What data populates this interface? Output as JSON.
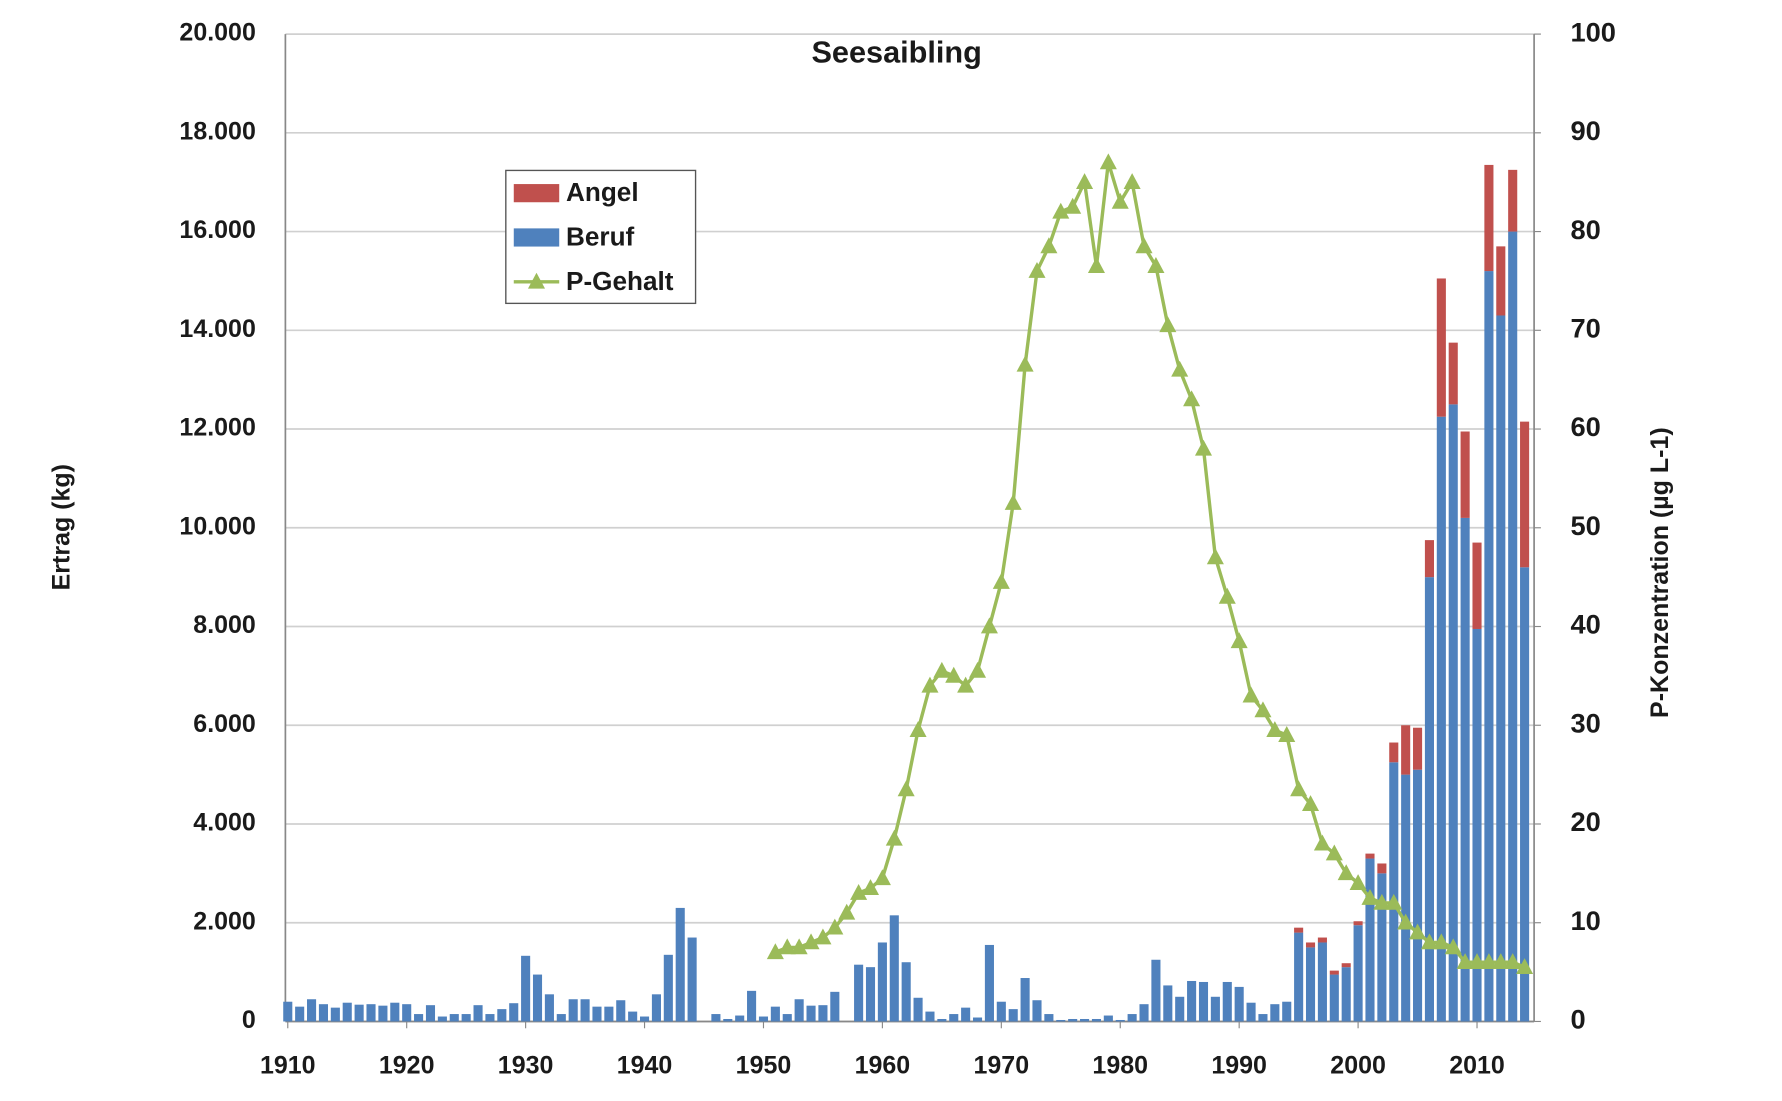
{
  "chart_data": {
    "type": "bar",
    "title": "Seesaibling",
    "stacked": true,
    "y_label": "Ertrag (kg)",
    "y2_label": "P-Konzentration (µg L-1)",
    "grid": true,
    "legend": "upper left",
    "x": [
      1910,
      1911,
      1912,
      1913,
      1914,
      1915,
      1916,
      1917,
      1918,
      1919,
      1920,
      1921,
      1922,
      1923,
      1924,
      1925,
      1926,
      1927,
      1928,
      1929,
      1930,
      1931,
      1932,
      1933,
      1934,
      1935,
      1936,
      1937,
      1938,
      1939,
      1940,
      1941,
      1942,
      1943,
      1944,
      1945,
      1946,
      1947,
      1948,
      1949,
      1950,
      1951,
      1952,
      1953,
      1954,
      1955,
      1956,
      1957,
      1958,
      1959,
      1960,
      1961,
      1962,
      1963,
      1964,
      1965,
      1966,
      1967,
      1968,
      1969,
      1970,
      1971,
      1972,
      1973,
      1974,
      1975,
      1976,
      1977,
      1978,
      1979,
      1980,
      1981,
      1982,
      1983,
      1984,
      1985,
      1986,
      1987,
      1988,
      1989,
      1990,
      1991,
      1992,
      1993,
      1994,
      1995,
      1996,
      1997,
      1998,
      1999,
      2000,
      2001,
      2002,
      2003,
      2004,
      2005,
      2006,
      2007,
      2008,
      2009,
      2010,
      2011,
      2012,
      2013,
      2014
    ],
    "series": [
      {
        "name": "Angel",
        "color": "#c0504d",
        "values": [
          0,
          0,
          0,
          0,
          0,
          0,
          0,
          0,
          0,
          0,
          0,
          0,
          0,
          0,
          0,
          0,
          0,
          0,
          0,
          0,
          0,
          0,
          0,
          0,
          0,
          0,
          0,
          0,
          0,
          0,
          0,
          0,
          0,
          0,
          0,
          0,
          0,
          0,
          0,
          0,
          0,
          0,
          0,
          0,
          0,
          0,
          0,
          0,
          0,
          0,
          0,
          0,
          0,
          0,
          0,
          0,
          0,
          0,
          0,
          0,
          0,
          0,
          0,
          0,
          0,
          0,
          0,
          0,
          0,
          0,
          0,
          0,
          0,
          0,
          0,
          0,
          0,
          0,
          0,
          0,
          0,
          0,
          0,
          0,
          0,
          100,
          100,
          100,
          80,
          80,
          80,
          100,
          200,
          400,
          1000,
          850,
          750,
          2800,
          1250,
          1750,
          1750,
          2150,
          1400,
          1250,
          2950
        ]
      },
      {
        "name": "Beruf",
        "color": "#4f81bd",
        "values": [
          400,
          300,
          450,
          350,
          280,
          380,
          340,
          350,
          320,
          380,
          350,
          150,
          330,
          100,
          150,
          150,
          330,
          150,
          250,
          370,
          1330,
          950,
          550,
          150,
          450,
          450,
          300,
          300,
          430,
          200,
          100,
          550,
          1350,
          2300,
          1700,
          0,
          150,
          50,
          120,
          620,
          100,
          300,
          150,
          450,
          320,
          330,
          600,
          0,
          1150,
          1100,
          1600,
          2150,
          1200,
          480,
          200,
          50,
          150,
          280,
          80,
          1550,
          400,
          250,
          880,
          430,
          150,
          30,
          50,
          50,
          50,
          120,
          30,
          150,
          350,
          1250,
          730,
          500,
          820,
          800,
          500,
          800,
          700,
          380,
          150,
          350,
          400,
          1800,
          1500,
          1600,
          950,
          1100,
          1950,
          3300,
          3000,
          5250,
          5000,
          5100,
          9000,
          12250,
          12500,
          10200,
          7950,
          15200,
          14300,
          16000,
          9200
        ]
      },
      {
        "name": "P-Gehalt",
        "color": "#9bbb59",
        "type": "line",
        "axis": "y2",
        "values": [
          null,
          null,
          null,
          null,
          null,
          null,
          null,
          null,
          null,
          null,
          null,
          null,
          null,
          null,
          null,
          null,
          null,
          null,
          null,
          null,
          null,
          null,
          null,
          null,
          null,
          null,
          null,
          null,
          null,
          null,
          null,
          null,
          null,
          null,
          null,
          null,
          null,
          null,
          null,
          null,
          null,
          7,
          7.5,
          7.5,
          8,
          8.5,
          9.5,
          11,
          13,
          13.5,
          14.5,
          18.5,
          23.5,
          29.5,
          34,
          35.5,
          35,
          34,
          35.5,
          40,
          44.5,
          52.5,
          66.5,
          76,
          78.5,
          82,
          82.5,
          85,
          76.5,
          87,
          83,
          85,
          78.5,
          76.5,
          70.5,
          66,
          63,
          58,
          47,
          43,
          38.5,
          33,
          31.5,
          29.5,
          29,
          23.5,
          22,
          18,
          17,
          15,
          14,
          12.5,
          12,
          12,
          10,
          9,
          8,
          8,
          7.5,
          6,
          6,
          6,
          6,
          6,
          5.5
        ]
      }
    ],
    "xlim": [
      1909.8,
      2014.8
    ],
    "xticks": [
      1910,
      1920,
      1930,
      1940,
      1950,
      1960,
      1970,
      1980,
      1990,
      2000,
      2010
    ],
    "ylim": [
      0,
      20000
    ],
    "yticks": [
      0,
      {
        "value": 2000,
        "label": "2.000"
      },
      {
        "value": 4000,
        "label": "4.000"
      },
      {
        "value": 6000,
        "label": "6.000"
      },
      {
        "value": 8000,
        "label": "8.000"
      },
      {
        "value": 10000,
        "label": "10.000"
      },
      {
        "value": 12000,
        "label": "12.000"
      },
      {
        "value": 14000,
        "label": "14.000"
      },
      {
        "value": 16000,
        "label": "16.000"
      },
      {
        "value": 18000,
        "label": "18.000"
      },
      {
        "value": 20000,
        "label": "20.000"
      }
    ],
    "y2lim": [
      0,
      100
    ],
    "y2ticks": [
      0,
      10,
      20,
      30,
      40,
      50,
      60,
      70,
      80,
      90,
      100
    ]
  }
}
